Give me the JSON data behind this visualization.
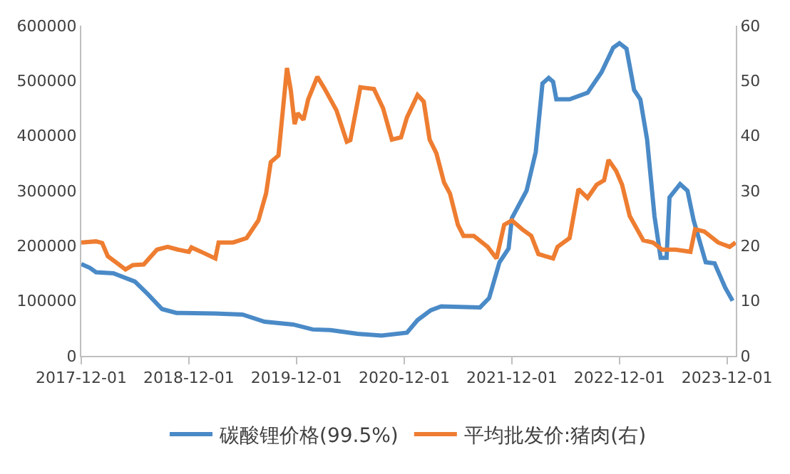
{
  "chart_data": {
    "type": "line",
    "xlim": [
      "2017-12-01",
      "2023-12-31"
    ],
    "xticks": [
      "2017-12-01",
      "2018-12-01",
      "2019-12-01",
      "2020-12-01",
      "2021-12-01",
      "2022-12-01",
      "2023-12-01"
    ],
    "ylim": [
      0,
      600000
    ],
    "yticks": [
      0,
      100000,
      200000,
      300000,
      400000,
      500000,
      600000
    ],
    "y2lim": [
      0,
      60
    ],
    "y2ticks": [
      0,
      10,
      20,
      30,
      40,
      50,
      60
    ],
    "grid": false,
    "legend": "bottom",
    "marker": "none",
    "line_style": "solid",
    "series": [
      {
        "name": "碳酸锂价格(99.5%)",
        "color": "#4a8ac7",
        "x": [
          "2017-12-01",
          "2017-12-30",
          "2018-01-20",
          "2018-03-20",
          "2018-06-01",
          "2018-07-15",
          "2018-09-01",
          "2018-10-20",
          "2019-03-01",
          "2019-06-01",
          "2019-08-15",
          "2019-11-20",
          "2020-01-25",
          "2020-03-25",
          "2020-06-25",
          "2020-09-15",
          "2020-12-10",
          "2021-01-15",
          "2021-03-01",
          "2021-04-05",
          "2021-08-15",
          "2021-09-15",
          "2021-10-20",
          "2021-11-20",
          "2021-12-01",
          "2022-01-20",
          "2022-02-20",
          "2022-03-15",
          "2022-04-05",
          "2022-04-20",
          "2022-05-01",
          "2022-06-15",
          "2022-08-15",
          "2022-10-01",
          "2022-11-10",
          "2022-12-01",
          "2022-12-25",
          "2023-01-20",
          "2023-02-10",
          "2023-03-05",
          "2023-03-30",
          "2023-04-20",
          "2023-05-10",
          "2023-05-20",
          "2023-06-25",
          "2023-07-20",
          "2023-08-10",
          "2023-09-20",
          "2023-10-20",
          "2023-11-25",
          "2023-12-20"
        ],
        "values": [
          167000,
          160000,
          152000,
          150000,
          135000,
          112000,
          85000,
          78000,
          77000,
          75000,
          62000,
          57000,
          48000,
          47000,
          40000,
          37000,
          42000,
          65000,
          83000,
          90000,
          88000,
          105000,
          170000,
          195000,
          250000,
          300000,
          370000,
          495000,
          505000,
          498000,
          466000,
          466000,
          478000,
          515000,
          560000,
          568000,
          558000,
          483000,
          466000,
          393000,
          254000,
          178000,
          178000,
          288000,
          312000,
          300000,
          246000,
          170000,
          168000,
          124000,
          100000
        ]
      },
      {
        "name": "平均批发价:猪肉(右)",
        "color": "#ee7d31",
        "axis": "y2",
        "x": [
          "2017-12-01",
          "2018-01-20",
          "2018-02-10",
          "2018-03-01",
          "2018-04-10",
          "2018-04-30",
          "2018-05-25",
          "2018-07-01",
          "2018-08-15",
          "2018-09-20",
          "2018-10-25",
          "2018-12-01",
          "2018-12-10",
          "2019-01-20",
          "2019-03-01",
          "2019-03-12",
          "2019-04-30",
          "2019-06-15",
          "2019-07-25",
          "2019-08-20",
          "2019-09-05",
          "2019-10-01",
          "2019-10-30",
          "2019-11-12",
          "2019-11-25",
          "2019-12-05",
          "2019-12-25",
          "2020-01-10",
          "2020-02-10",
          "2020-03-05",
          "2020-04-15",
          "2020-05-20",
          "2020-06-01",
          "2020-07-05",
          "2020-08-20",
          "2020-09-20",
          "2020-10-20",
          "2020-11-20",
          "2020-12-10",
          "2021-01-15",
          "2021-02-05",
          "2021-02-25",
          "2021-03-20",
          "2021-04-15",
          "2021-05-05",
          "2021-06-01",
          "2021-06-20",
          "2021-07-25",
          "2021-09-10",
          "2021-10-10",
          "2021-11-05",
          "2021-12-01",
          "2022-01-05",
          "2022-02-05",
          "2022-03-01",
          "2022-04-20",
          "2022-05-05",
          "2022-06-15",
          "2022-07-15",
          "2022-08-15",
          "2022-09-15",
          "2022-10-10",
          "2022-10-25",
          "2022-11-20",
          "2022-12-10",
          "2023-01-05",
          "2023-01-30",
          "2023-02-20",
          "2023-03-25",
          "2023-04-25",
          "2023-06-10",
          "2023-07-30",
          "2023-08-15",
          "2023-09-15",
          "2023-11-01",
          "2023-12-10",
          "2023-12-30"
        ],
        "values": [
          20.6,
          20.8,
          20.5,
          18.1,
          16.5,
          15.7,
          16.5,
          16.6,
          19.3,
          19.8,
          19.3,
          18.9,
          19.7,
          18.7,
          17.7,
          20.6,
          20.6,
          21.4,
          24.6,
          29.5,
          35.2,
          36.4,
          52.3,
          48.2,
          42.1,
          44.1,
          42.9,
          46.6,
          50.7,
          48.6,
          44.6,
          38.9,
          39.2,
          48.8,
          48.5,
          45.0,
          39.3,
          39.7,
          43.3,
          47.4,
          46.2,
          39.3,
          36.8,
          31.5,
          29.5,
          23.8,
          21.8,
          21.8,
          19.8,
          17.7,
          23.8,
          24.6,
          23.0,
          21.8,
          18.5,
          17.7,
          19.8,
          21.4,
          30.3,
          28.7,
          31.1,
          31.9,
          35.6,
          33.6,
          31.1,
          25.4,
          23.0,
          21.0,
          20.6,
          19.3,
          19.3,
          18.9,
          23.0,
          22.6,
          20.6,
          19.8,
          20.6
        ]
      }
    ]
  }
}
